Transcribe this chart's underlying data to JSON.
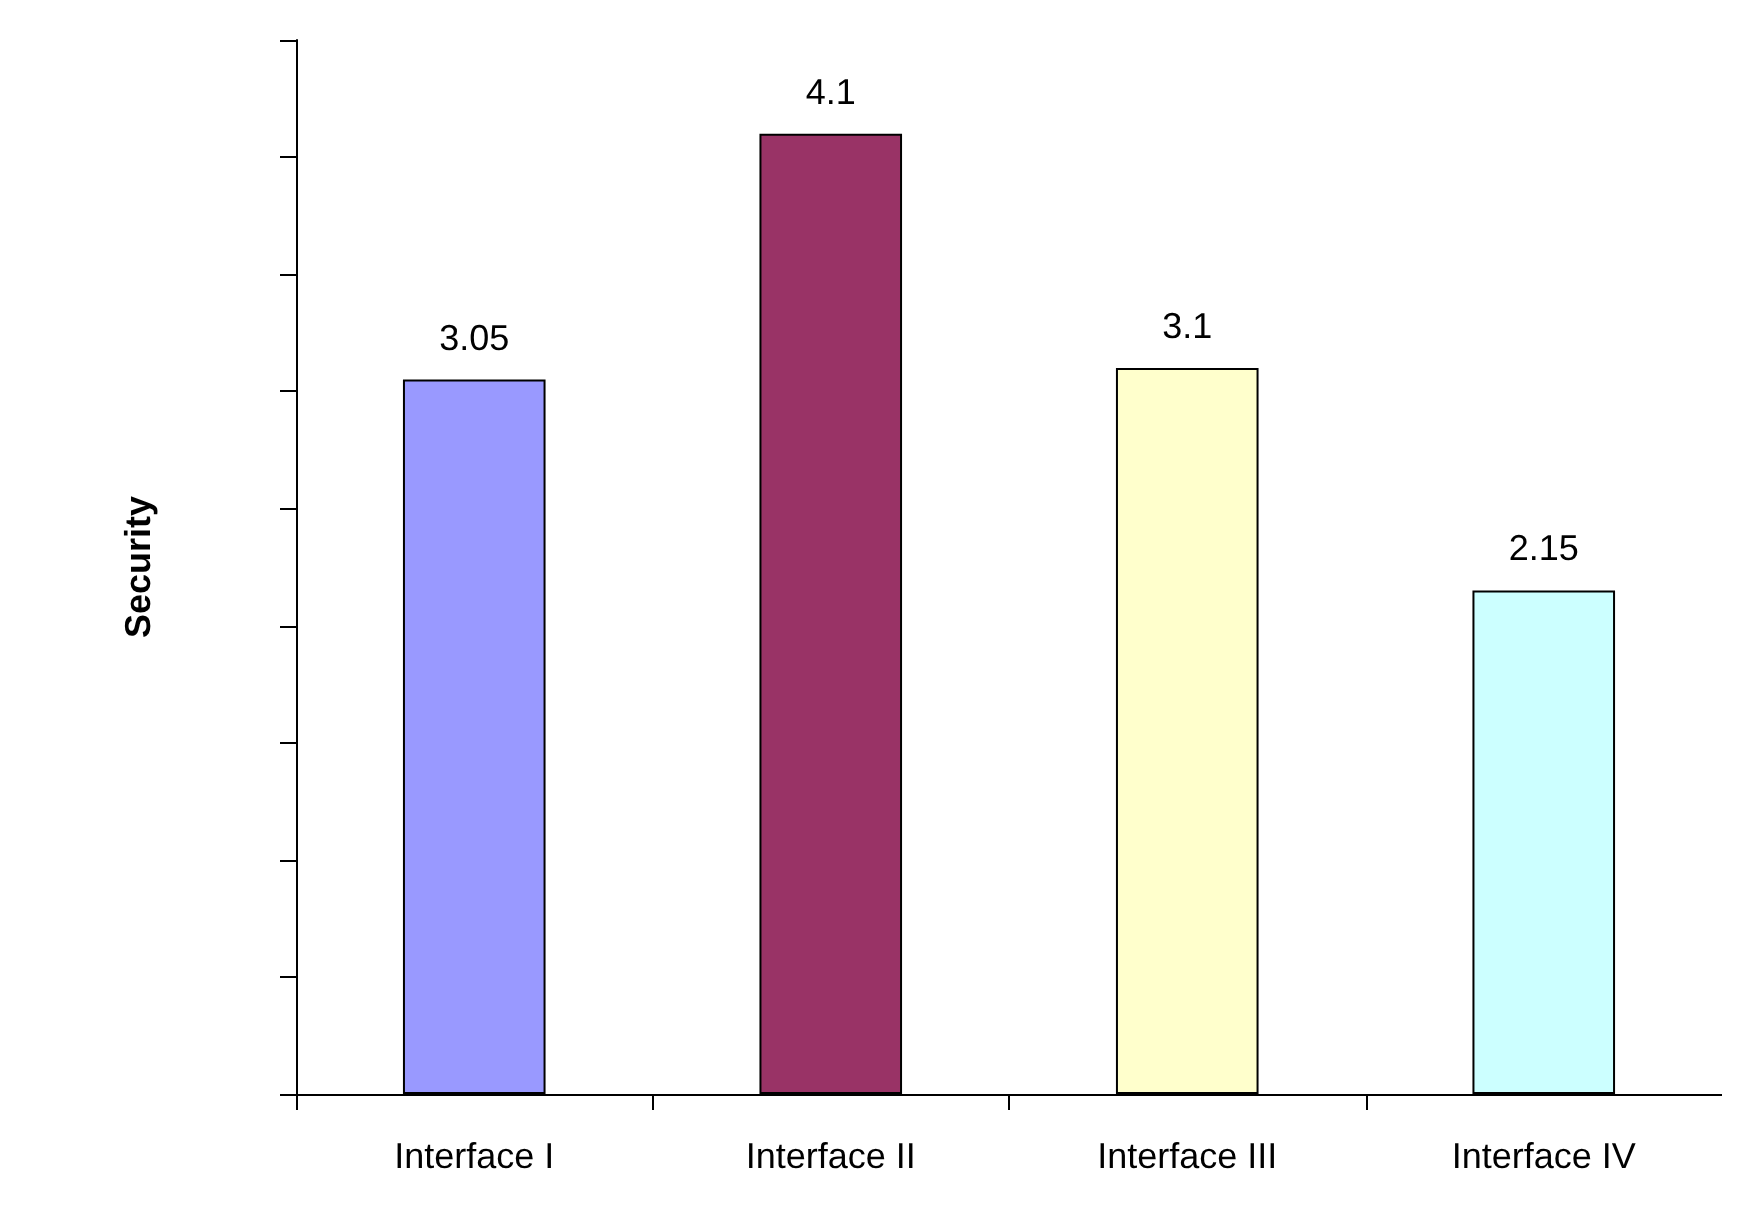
{
  "chart_data": {
    "type": "bar",
    "ylabel": "Security",
    "categories": [
      "Interface I",
      "Interface II",
      "Interface III",
      "Interface IV"
    ],
    "values": [
      3.05,
      4.1,
      3.1,
      2.15
    ],
    "colors": [
      "#9999ff",
      "#993366",
      "#ffffcc",
      "#ccffff"
    ],
    "data_labels": true,
    "grid": false,
    "tick_labels": "x",
    "ylim": [
      0,
      4.5
    ],
    "yticks": [
      {
        "value": 0,
        "label": null
      },
      {
        "value": 0.5,
        "label": null
      },
      {
        "value": 1,
        "label": null
      },
      {
        "value": 1.5,
        "label": null
      },
      {
        "value": 2,
        "label": null
      },
      {
        "value": 2.5,
        "label": null
      },
      {
        "value": 3,
        "label": null
      },
      {
        "value": 3.5,
        "label": null
      },
      {
        "value": 4,
        "label": null
      },
      {
        "value": 4.5,
        "label": null
      }
    ]
  }
}
